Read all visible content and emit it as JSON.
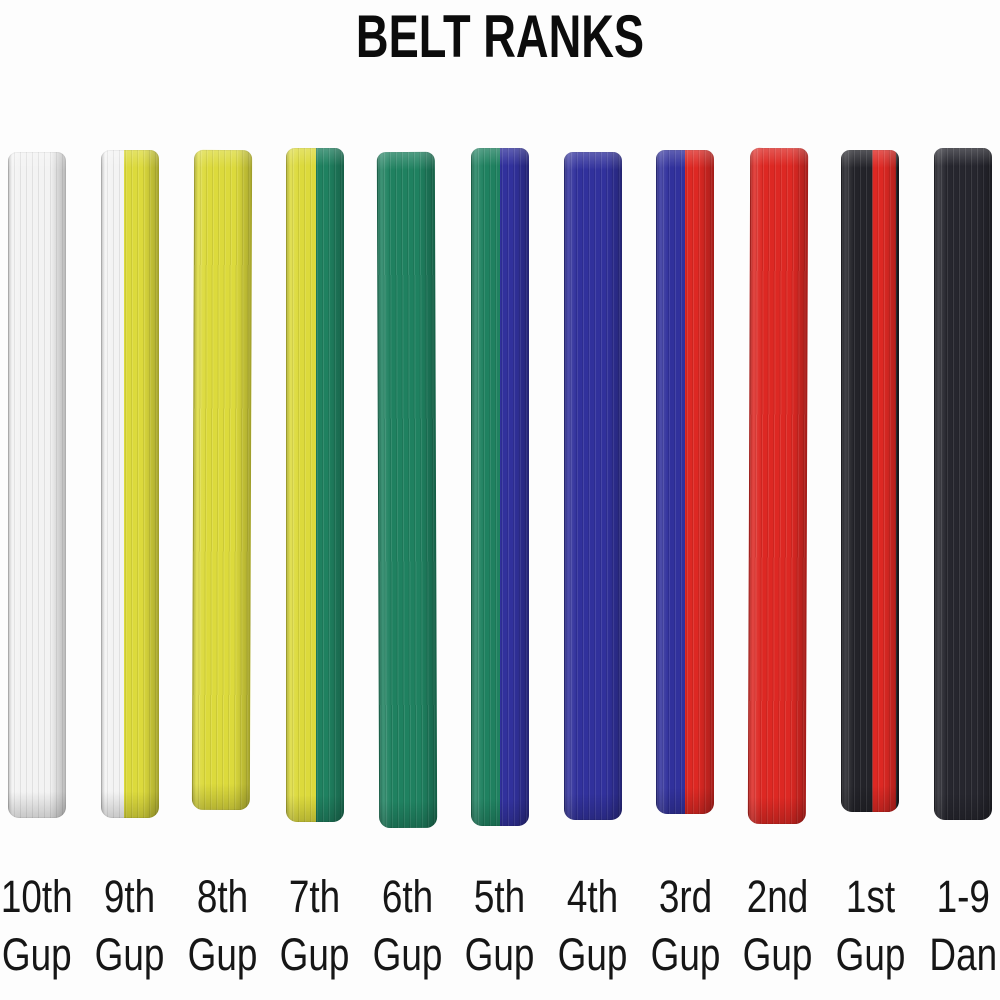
{
  "title": "BELT RANKS",
  "background_color": "#fdfdfd",
  "text_color": "#161616",
  "palette": {
    "white": "#f3f3f3",
    "yellow": "#dcda3c",
    "green": "#1f8160",
    "blue": "#31319c",
    "red": "#dd2823",
    "black": "#26262e"
  },
  "belts": [
    {
      "rank": "10th Gup",
      "label_line1": "10th",
      "label_line2": "Gup",
      "belt_name": "white-belt",
      "segments": [
        {
          "color": "#f3f3f3",
          "pct": 100
        }
      ]
    },
    {
      "rank": "9th Gup",
      "label_line1": "9th",
      "label_line2": "Gup",
      "belt_name": "white-yellow-belt",
      "segments": [
        {
          "color": "#f3f3f3",
          "pct": 40
        },
        {
          "color": "#dcda3c",
          "pct": 60
        }
      ]
    },
    {
      "rank": "8th Gup",
      "label_line1": "8th",
      "label_line2": "Gup",
      "belt_name": "yellow-belt",
      "segments": [
        {
          "color": "#dcda3c",
          "pct": 100
        }
      ]
    },
    {
      "rank": "7th Gup",
      "label_line1": "7th",
      "label_line2": "Gup",
      "belt_name": "yellow-green-belt",
      "segments": [
        {
          "color": "#dcda3c",
          "pct": 52
        },
        {
          "color": "#1f8160",
          "pct": 48
        }
      ]
    },
    {
      "rank": "6th Gup",
      "label_line1": "6th",
      "label_line2": "Gup",
      "belt_name": "green-belt",
      "segments": [
        {
          "color": "#1f8160",
          "pct": 100
        }
      ]
    },
    {
      "rank": "5th Gup",
      "label_line1": "5th",
      "label_line2": "Gup",
      "belt_name": "green-blue-belt",
      "segments": [
        {
          "color": "#1f8160",
          "pct": 50
        },
        {
          "color": "#31319c",
          "pct": 50
        }
      ]
    },
    {
      "rank": "4th Gup",
      "label_line1": "4th",
      "label_line2": "Gup",
      "belt_name": "blue-belt",
      "segments": [
        {
          "color": "#31319c",
          "pct": 100
        }
      ]
    },
    {
      "rank": "3rd Gup",
      "label_line1": "3rd",
      "label_line2": "Gup",
      "belt_name": "blue-red-belt",
      "segments": [
        {
          "color": "#31319c",
          "pct": 50
        },
        {
          "color": "#dd2823",
          "pct": 50
        }
      ]
    },
    {
      "rank": "2nd Gup",
      "label_line1": "2nd",
      "label_line2": "Gup",
      "belt_name": "red-belt",
      "segments": [
        {
          "color": "#dd2823",
          "pct": 100
        }
      ]
    },
    {
      "rank": "1st Gup",
      "label_line1": "1st",
      "label_line2": "Gup",
      "belt_name": "black-red-belt",
      "segments": [
        {
          "color": "#232329",
          "pct": 54
        },
        {
          "color": "#dd2823",
          "pct": 41
        },
        {
          "color": "#1d1d22",
          "pct": 5
        }
      ]
    },
    {
      "rank": "1-9 Dan",
      "label_line1": "1-9",
      "label_line2": "Dan",
      "belt_name": "black-belt",
      "segments": [
        {
          "color": "#26262e",
          "pct": 100
        }
      ]
    }
  ]
}
